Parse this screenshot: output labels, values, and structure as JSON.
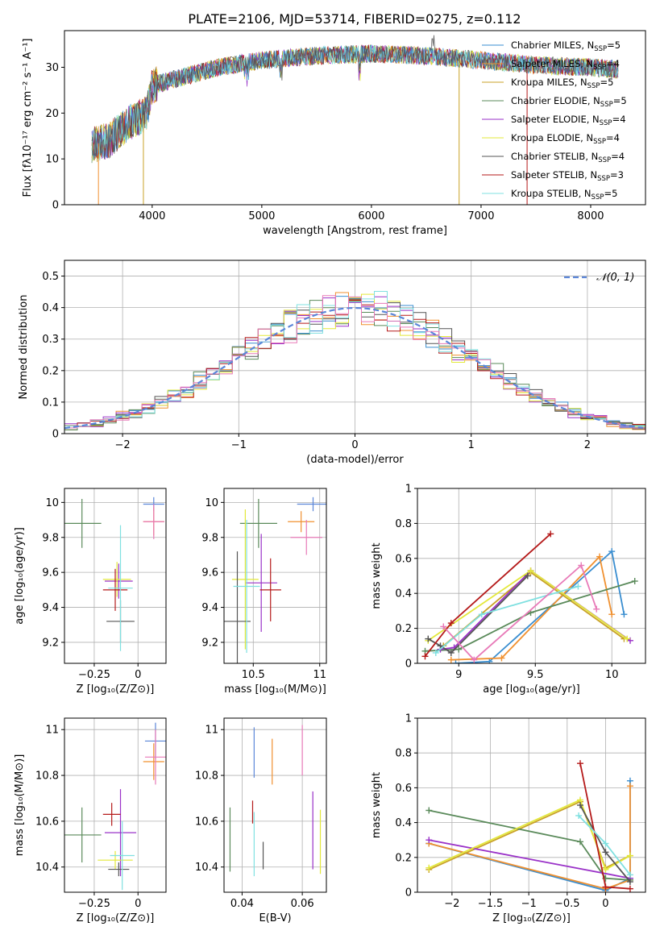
{
  "title": "PLATE=2106, MJD=53714, FIBERID=0275, z=0.112",
  "legend_entries": [
    {
      "label": "Chabrier MILES, N",
      "sub": "SSP",
      "suffix": "=5",
      "color": "#3a8ed0"
    },
    {
      "label": "Salpeter MILES, N",
      "sub": "SSP",
      "suffix": "=4",
      "color": "#f0902f"
    },
    {
      "label": "Kroupa MILES, N",
      "sub": "SSP",
      "suffix": "=5",
      "color": "#c9a227"
    },
    {
      "label": "Chabrier ELODIE, N",
      "sub": "SSP",
      "suffix": "=5",
      "color": "#5a8a5a"
    },
    {
      "label": "Salpeter ELODIE, N",
      "sub": "SSP",
      "suffix": "=4",
      "color": "#9a32c8"
    },
    {
      "label": "Kroupa ELODIE, N",
      "sub": "SSP",
      "suffix": "=4",
      "color": "#e3e83a"
    },
    {
      "label": "Chabrier STELIB, N",
      "sub": "SSP",
      "suffix": "=4",
      "color": "#555555"
    },
    {
      "label": "Salpeter STELIB, N",
      "sub": "SSP",
      "suffix": "=3",
      "color": "#b51a1a"
    },
    {
      "label": "Kroupa STELIB, N",
      "sub": "SSP",
      "suffix": "=5",
      "color": "#7fe0e0"
    }
  ],
  "chart_data": [
    {
      "id": "spectrum",
      "type": "line",
      "xlabel": "wavelength [Angstrom, rest frame]",
      "ylabel": "Flux [fλ10⁻¹⁷ erg cm⁻² s⁻¹ A⁻¹]",
      "xlim": [
        3200,
        8500
      ],
      "ylim": [
        0,
        38
      ],
      "xticks": [
        4000,
        5000,
        6000,
        7000,
        8000
      ],
      "yticks": [
        0,
        10,
        20,
        30
      ],
      "continuum": {
        "x": [
          3450,
          3600,
          3800,
          3950,
          4000,
          4300,
          4600,
          5000,
          5500,
          6000,
          6500,
          7000,
          7500,
          8000,
          8250
        ],
        "y": [
          13,
          14,
          18,
          20,
          26,
          28,
          30,
          31.5,
          32.5,
          33,
          32.5,
          31.5,
          30.5,
          30,
          29.5
        ]
      }
    },
    {
      "id": "residuals",
      "type": "histogram",
      "xlabel": "(data-model)/error",
      "ylabel": "Normed distribution",
      "xlim": [
        -2.5,
        2.5
      ],
      "ylim": [
        0,
        0.55
      ],
      "xticks": [
        -2,
        -1,
        0,
        1,
        2
      ],
      "yticks": [
        0.0,
        0.1,
        0.2,
        0.3,
        0.4,
        0.5
      ],
      "legend": "𝒩(0, 1)",
      "gaussian": {
        "mean": 0,
        "sigma": 1
      }
    },
    {
      "id": "age_vs_Z",
      "type": "errorbar",
      "xlabel": "Z [log₁₀(Z/Z⊙)]",
      "ylabel": "age  [log₁₀(age/yr)]",
      "xlim": [
        -0.42,
        0.16
      ],
      "ylim": [
        9.08,
        10.08
      ],
      "xticks": [
        -0.25,
        0.0
      ],
      "yticks": [
        9.2,
        9.4,
        9.6,
        9.8,
        10.0
      ],
      "points": [
        {
          "x": 0.09,
          "y": 9.99,
          "xerr": 0.06,
          "yerr": 0.04
        },
        {
          "x": 0.09,
          "y": 9.89,
          "xerr": 0.06,
          "yerr": 0.08
        },
        {
          "x": 0.09,
          "y": 9.89,
          "xerr": 0.06,
          "yerr": 0.1
        },
        {
          "x": -0.32,
          "y": 9.88,
          "xerr": 0.11,
          "yerr": 0.14
        },
        {
          "x": -0.11,
          "y": 9.55,
          "xerr": 0.08,
          "yerr": 0.1
        },
        {
          "x": -0.12,
          "y": 9.56,
          "xerr": 0.08,
          "yerr": 0.1
        },
        {
          "x": -0.1,
          "y": 9.32,
          "xerr": 0.08,
          "yerr": 0.12
        },
        {
          "x": -0.13,
          "y": 9.5,
          "xerr": 0.07,
          "yerr": 0.12
        },
        {
          "x": -0.1,
          "y": 9.51,
          "xerr": 0.07,
          "yerr": 0.36
        }
      ]
    },
    {
      "id": "age_vs_mass",
      "type": "errorbar",
      "xlabel": "mass [log₁₀(M/M⊙)]",
      "ylabel": "",
      "xlim": [
        10.28,
        11.05
      ],
      "ylim": [
        9.08,
        10.08
      ],
      "xticks": [
        10.5,
        11.0
      ],
      "yticks": [
        9.2,
        9.4,
        9.6,
        9.8,
        10.0
      ],
      "points": [
        {
          "x": 10.95,
          "y": 9.99,
          "xerr": 0.12,
          "yerr": 0.04
        },
        {
          "x": 10.86,
          "y": 9.89,
          "xerr": 0.1,
          "yerr": 0.06
        },
        {
          "x": 10.9,
          "y": 9.8,
          "xerr": 0.12,
          "yerr": 0.1
        },
        {
          "x": 10.54,
          "y": 9.88,
          "xerr": 0.14,
          "yerr": 0.14
        },
        {
          "x": 10.56,
          "y": 9.54,
          "xerr": 0.12,
          "yerr": 0.28
        },
        {
          "x": 10.44,
          "y": 9.56,
          "xerr": 0.1,
          "yerr": 0.4
        },
        {
          "x": 10.38,
          "y": 9.32,
          "xerr": 0.1,
          "yerr": 0.4
        },
        {
          "x": 10.63,
          "y": 9.5,
          "xerr": 0.08,
          "yerr": 0.18
        },
        {
          "x": 10.45,
          "y": 9.52,
          "xerr": 0.1,
          "yerr": 0.38
        }
      ]
    },
    {
      "id": "massweight_vs_age",
      "type": "line",
      "xlabel": "age  [log₁₀(age/yr)]",
      "ylabel": "mass weight",
      "xlim": [
        8.73,
        10.22
      ],
      "ylim": [
        0,
        1
      ],
      "xticks": [
        9.0,
        9.5,
        10.0
      ],
      "yticks": [
        0.0,
        0.2,
        0.4,
        0.6,
        0.8,
        1.0
      ],
      "series": [
        {
          "x": [
            8.98,
            9.2,
            10.0,
            10.08
          ],
          "y": [
            0.0,
            0.01,
            0.64,
            0.28
          ]
        },
        {
          "x": [
            8.95,
            9.28,
            9.92,
            10.0
          ],
          "y": [
            0.02,
            0.03,
            0.61,
            0.28
          ]
        },
        {
          "x": [
            8.9,
            9.47,
            10.08
          ],
          "y": [
            0.1,
            0.52,
            0.14
          ]
        },
        {
          "x": [
            8.78,
            9.0,
            9.47,
            10.15
          ],
          "y": [
            0.07,
            0.08,
            0.29,
            0.47
          ]
        },
        {
          "x": [
            8.88,
            8.97,
            9.47,
            10.12
          ],
          "y": [
            0.08,
            0.09,
            0.53,
            0.13
          ]
        },
        {
          "x": [
            8.8,
            9.47,
            10.1
          ],
          "y": [
            0.13,
            0.53,
            0.14
          ]
        },
        {
          "x": [
            8.8,
            8.88,
            8.95,
            9.45
          ],
          "y": [
            0.14,
            0.1,
            0.06,
            0.5
          ]
        },
        {
          "x": [
            8.78,
            8.95,
            9.6
          ],
          "y": [
            0.04,
            0.23,
            0.74
          ]
        },
        {
          "x": [
            8.85,
            9.15,
            9.78
          ],
          "y": [
            0.06,
            0.28,
            0.44
          ]
        },
        {
          "x": [
            8.9,
            9.1,
            9.8,
            9.9
          ],
          "y": [
            0.21,
            0.02,
            0.56,
            0.31
          ]
        }
      ]
    },
    {
      "id": "mass_vs_Z",
      "type": "errorbar",
      "xlabel": "Z [log₁₀(Z/Z⊙)]",
      "ylabel": "mass [log₁₀(M/M⊙)]",
      "xlim": [
        -0.42,
        0.16
      ],
      "ylim": [
        10.29,
        11.05
      ],
      "xticks": [
        -0.25,
        0.0
      ],
      "yticks": [
        10.4,
        10.6,
        10.8,
        11.0
      ],
      "points": [
        {
          "x": 0.1,
          "y": 10.95,
          "xerr": 0.06,
          "yerr": 0.08
        },
        {
          "x": 0.09,
          "y": 10.86,
          "xerr": 0.06,
          "yerr": 0.08
        },
        {
          "x": 0.1,
          "y": 10.88,
          "xerr": 0.06,
          "yerr": 0.12
        },
        {
          "x": -0.32,
          "y": 10.54,
          "xerr": 0.11,
          "yerr": 0.12
        },
        {
          "x": -0.1,
          "y": 10.55,
          "xerr": 0.09,
          "yerr": 0.19
        },
        {
          "x": -0.13,
          "y": 10.43,
          "xerr": 0.1,
          "yerr": 0.04
        },
        {
          "x": -0.11,
          "y": 10.39,
          "xerr": 0.06,
          "yerr": 0.03
        },
        {
          "x": -0.15,
          "y": 10.63,
          "xerr": 0.05,
          "yerr": 0.05
        },
        {
          "x": -0.09,
          "y": 10.45,
          "xerr": 0.07,
          "yerr": 0.15
        }
      ]
    },
    {
      "id": "mass_vs_ebv",
      "type": "errorbar",
      "xlabel": "E(B-V)",
      "ylabel": "",
      "xlim": [
        0.034,
        0.068
      ],
      "ylim": [
        10.29,
        11.05
      ],
      "xticks": [
        0.04,
        0.06
      ],
      "yticks": [
        10.4,
        10.6,
        10.8,
        11.0
      ],
      "points": [
        {
          "x": 0.044,
          "y": 10.9,
          "xerr": 0,
          "yerr": 0.11
        },
        {
          "x": 0.05,
          "y": 10.86,
          "xerr": 0,
          "yerr": 0.1
        },
        {
          "x": 0.06,
          "y": 10.91,
          "xerr": 0,
          "yerr": 0.11
        },
        {
          "x": 0.036,
          "y": 10.52,
          "xerr": 0,
          "yerr": 0.14
        },
        {
          "x": 0.0635,
          "y": 10.56,
          "xerr": 0,
          "yerr": 0.17
        },
        {
          "x": 0.066,
          "y": 10.51,
          "xerr": 0,
          "yerr": 0.14
        },
        {
          "x": 0.047,
          "y": 10.45,
          "xerr": 0,
          "yerr": 0.06
        },
        {
          "x": 0.0435,
          "y": 10.64,
          "xerr": 0,
          "yerr": 0.05
        },
        {
          "x": 0.044,
          "y": 10.5,
          "xerr": 0,
          "yerr": 0.14
        }
      ]
    },
    {
      "id": "massweight_vs_Z",
      "type": "line",
      "xlabel": "Z [log₁₀(Z/Z⊙)]",
      "ylabel": "mass weight",
      "xlim": [
        -2.45,
        0.52
      ],
      "ylim": [
        0,
        1
      ],
      "xticks": [
        -2.0,
        -1.5,
        -1.0,
        -0.5,
        0.0
      ],
      "yticks": [
        0.0,
        0.2,
        0.4,
        0.6,
        0.8,
        1.0
      ],
      "series": [
        {
          "x": [
            -2.3,
            0.0,
            0.32,
            0.32
          ],
          "y": [
            0.28,
            0.01,
            0.08,
            0.64
          ]
        },
        {
          "x": [
            -2.3,
            0.0,
            0.32,
            0.32
          ],
          "y": [
            0.28,
            0.02,
            0.07,
            0.61
          ]
        },
        {
          "x": [
            -2.3,
            -0.33,
            0.0,
            0.32
          ],
          "y": [
            0.13,
            0.52,
            0.14,
            0.21
          ]
        },
        {
          "x": [
            -2.3,
            -0.33,
            0.0,
            0.32
          ],
          "y": [
            0.47,
            0.29,
            0.08,
            0.07
          ]
        },
        {
          "x": [
            -2.3,
            0.32
          ],
          "y": [
            0.3,
            0.08
          ]
        },
        {
          "x": [
            -2.3,
            -0.33,
            0.0,
            0.32
          ],
          "y": [
            0.14,
            0.53,
            0.13,
            0.21
          ]
        },
        {
          "x": [
            -0.33,
            0.0,
            0.32
          ],
          "y": [
            0.5,
            0.23,
            0.06
          ]
        },
        {
          "x": [
            -0.33,
            0.0,
            0.32
          ],
          "y": [
            0.74,
            0.03,
            0.02
          ]
        },
        {
          "x": [
            -0.35,
            0.0,
            0.32
          ],
          "y": [
            0.44,
            0.28,
            0.1
          ]
        }
      ]
    }
  ]
}
